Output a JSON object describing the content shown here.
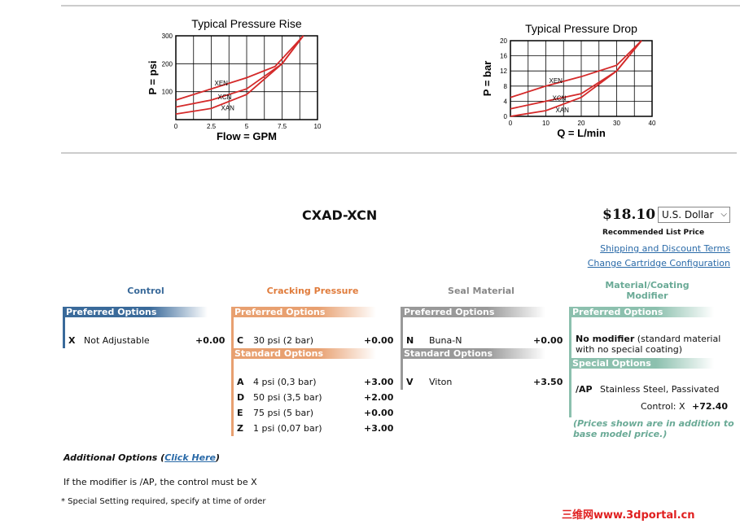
{
  "charts": [
    {
      "type": "line",
      "title": "Typical Pressure Rise",
      "x_label": "Flow = GPM",
      "y_label": "P = psi",
      "xlim": [
        0,
        10
      ],
      "ylim": [
        0,
        300
      ],
      "xticks": [
        0,
        2.5,
        5,
        7.5,
        10
      ],
      "yticks": [
        100,
        200,
        300
      ],
      "grid": true,
      "series": [
        {
          "name": "XEN",
          "color": "#d42a2a",
          "x": [
            0,
            2.5,
            5,
            7,
            9
          ],
          "values": [
            70,
            110,
            150,
            190,
            300
          ]
        },
        {
          "name": "XCN",
          "color": "#d42a2a",
          "x": [
            0,
            2.5,
            5,
            7.5,
            9
          ],
          "values": [
            45,
            70,
            110,
            200,
            300
          ]
        },
        {
          "name": "XAN",
          "color": "#d42a2a",
          "x": [
            0,
            2.5,
            5,
            7.5,
            9
          ],
          "values": [
            20,
            40,
            90,
            200,
            300
          ]
        }
      ]
    },
    {
      "type": "line",
      "title": "Typical Pressure Drop",
      "x_label": "Q = L/min",
      "y_label": "P = bar",
      "xlim": [
        0,
        40
      ],
      "ylim": [
        0,
        20
      ],
      "xticks": [
        0,
        10,
        20,
        30,
        40
      ],
      "yticks": [
        0,
        4,
        8,
        12,
        16,
        20
      ],
      "grid": true,
      "series": [
        {
          "name": "XEN",
          "color": "#d42a2a",
          "x": [
            0,
            10,
            20,
            30,
            37
          ],
          "values": [
            5,
            8,
            10.5,
            13.5,
            20
          ]
        },
        {
          "name": "XCN",
          "color": "#d42a2a",
          "x": [
            0,
            10,
            20,
            30,
            37
          ],
          "values": [
            2,
            4,
            6,
            12,
            20
          ]
        },
        {
          "name": "XAN",
          "color": "#d42a2a",
          "x": [
            0,
            10,
            20,
            30,
            37
          ],
          "values": [
            0,
            1.5,
            5,
            12,
            20
          ]
        }
      ]
    }
  ],
  "product": {
    "model": "CXAD-XCN",
    "price": "$18.10",
    "currency": "U.S. Dollar",
    "price_note": "Recommended List Price",
    "links": [
      "Shipping and Discount Terms",
      "Change Cartridge Configuration"
    ]
  },
  "columns": [
    {
      "title": "Control",
      "sections": [
        {
          "title": "Preferred Options",
          "rows": [
            [
              "X",
              "Not Adjustable",
              "+0.00"
            ]
          ]
        }
      ]
    },
    {
      "title": "Cracking Pressure",
      "sections": [
        {
          "title": "Preferred Options",
          "rows": [
            [
              "C",
              "30 psi (2 bar)",
              "+0.00"
            ]
          ]
        },
        {
          "title": "Standard Options",
          "rows": [
            [
              "A",
              "4 psi (0,3 bar)",
              "+3.00"
            ],
            [
              "D",
              "50 psi (3,5 bar)",
              "+2.00"
            ],
            [
              "E",
              "75 psi (5 bar)",
              "+0.00"
            ],
            [
              "Z",
              "1 psi (0,07 bar)",
              "+3.00"
            ]
          ]
        }
      ]
    },
    {
      "title": "Seal Material",
      "sections": [
        {
          "title": "Preferred Options",
          "rows": [
            [
              "N",
              "Buna-N",
              "+0.00"
            ]
          ]
        },
        {
          "title": "Standard Options",
          "rows": [
            [
              "V",
              "Viton",
              "+3.50"
            ]
          ]
        }
      ]
    },
    {
      "title": "Material/Coating Modifier",
      "preferred_title": "Preferred Options",
      "preferred_name": "No modifier",
      "preferred_desc": "(standard material with no special coating)",
      "special_title": "Special Options",
      "special_code": "/AP",
      "special_desc": "Stainless Steel, Passivated",
      "special_cond": "Control: X",
      "special_price": "+72.40",
      "note": "(Prices shown are in addition to base model price.)"
    }
  ],
  "footer": {
    "additional_prefix": "Additional Options (",
    "additional_link": "Click Here",
    "additional_suffix": ")",
    "rule": "If the modifier is /AP, the control must be X",
    "special": "* Special Setting required, specify at time of order",
    "watermark": "三维网www.3dportal.cn"
  }
}
